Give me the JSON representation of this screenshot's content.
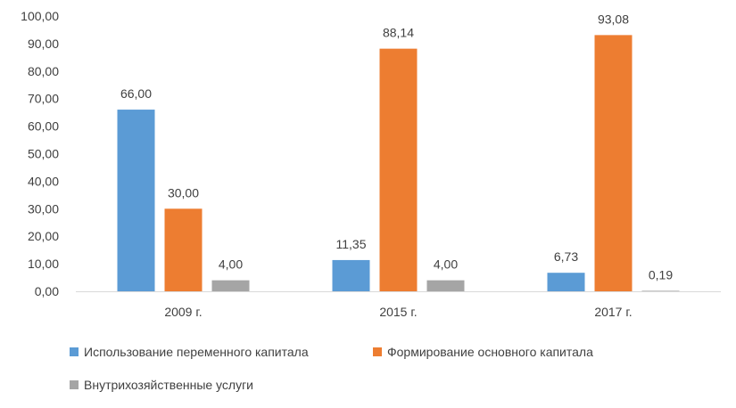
{
  "chart_data": {
    "type": "bar",
    "categories": [
      "2009 г.",
      "2015 г.",
      "2017 г."
    ],
    "series": [
      {
        "name": "Использование переменного капитала",
        "color": "#5b9bd5",
        "values": [
          66.0,
          11.35,
          6.73
        ],
        "labels": [
          "66,00",
          "11,35",
          "6,73"
        ]
      },
      {
        "name": "Формирование основного капитала",
        "color": "#ed7d31",
        "values": [
          30.0,
          88.14,
          93.08
        ],
        "labels": [
          "30,00",
          "88,14",
          "93,08"
        ]
      },
      {
        "name": "Внутрихозяйственные услуги",
        "color": "#a5a5a5",
        "values": [
          4.0,
          4.0,
          0.19
        ],
        "labels": [
          "4,00",
          "4,00",
          "0,19"
        ]
      }
    ],
    "yticks": [
      "0,00",
      "10,00",
      "20,00",
      "30,00",
      "40,00",
      "50,00",
      "60,00",
      "70,00",
      "80,00",
      "90,00",
      "100,00"
    ],
    "ylim": [
      0,
      100
    ],
    "grid": false,
    "legend_position": "bottom"
  }
}
